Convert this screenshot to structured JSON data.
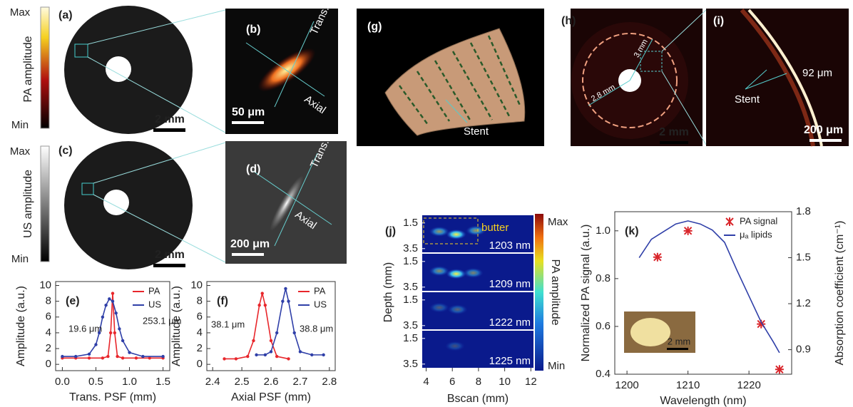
{
  "chart_data": [
    {
      "type": "line",
      "panel_label": "(e)",
      "xlabel": "Trans. PSF (mm)",
      "ylabel": "Amplitude (a.u.)",
      "xlim": [
        -0.1,
        1.6
      ],
      "xticks": [
        {
          "value": 0,
          "label": "0.0"
        },
        0.5,
        {
          "value": 1,
          "label": "1.0"
        },
        1.5
      ],
      "ylim": [
        -0.8,
        10.5
      ],
      "yticks": [
        0,
        2,
        4,
        6,
        8,
        10
      ],
      "legend": "upper right",
      "series": [
        {
          "name": "PA",
          "color": "#e8262b",
          "mode": "lines+markers",
          "x": [
            0,
            0.2,
            0.4,
            0.6,
            0.68,
            0.72,
            0.75,
            0.78,
            0.82,
            0.9,
            1.1,
            1.3,
            1.5
          ],
          "values": [
            0.8,
            0.8,
            0.8,
            0.8,
            1,
            4,
            9,
            4,
            1,
            0.8,
            0.8,
            0.8,
            0.8
          ]
        },
        {
          "name": "US",
          "color": "#2f3fa8",
          "mode": "lines+markers",
          "x": [
            0,
            0.2,
            0.4,
            0.5,
            0.55,
            0.6,
            0.65,
            0.7,
            0.75,
            0.8,
            0.85,
            0.9,
            1,
            1.2,
            1.5
          ],
          "values": [
            1,
            1,
            1.3,
            2.5,
            4,
            6,
            7.5,
            8.3,
            8,
            6.5,
            4.5,
            3,
            1.5,
            1,
            1
          ]
        }
      ],
      "annotations": [
        "19.6 μm",
        "253.1 μm"
      ]
    },
    {
      "type": "line",
      "panel_label": "(f)",
      "xlabel": "Axial PSF (mm)",
      "ylabel": "Amplitude (a.u.)",
      "xlim": [
        2.38,
        2.82
      ],
      "xticks": [
        2.4,
        2.5,
        2.6,
        2.7,
        2.8
      ],
      "ylim": [
        -0.8,
        10.5
      ],
      "yticks": [
        0,
        2,
        4,
        6,
        8,
        10
      ],
      "legend": "upper right",
      "series": [
        {
          "name": "PA",
          "color": "#e8262b",
          "mode": "lines+markers",
          "x": [
            2.44,
            2.48,
            2.52,
            2.54,
            2.56,
            2.57,
            2.58,
            2.6,
            2.62,
            2.66
          ],
          "values": [
            0.7,
            0.7,
            1,
            3,
            7.5,
            9,
            7.5,
            3,
            1,
            0.7
          ]
        },
        {
          "name": "US",
          "color": "#2f3fa8",
          "mode": "lines+markers",
          "x": [
            2.55,
            2.58,
            2.6,
            2.62,
            2.64,
            2.65,
            2.66,
            2.68,
            2.7,
            2.74,
            2.78
          ],
          "values": [
            1.2,
            1.2,
            1.6,
            4,
            8,
            9.6,
            8,
            4,
            1.6,
            1.2,
            1.2
          ]
        }
      ],
      "annotations": [
        "38.1 μm",
        "38.8 μm"
      ]
    },
    {
      "type": "line",
      "panel_label": "(k)",
      "xlabel": "Wavelength (nm)",
      "ylabel": "Normalized PA signal (a.u.)",
      "y2label": "Absorption coefficient (cm⁻¹)",
      "xlim": [
        1198,
        1227
      ],
      "xticks": [
        1200,
        1210,
        1220
      ],
      "ylim": [
        0.4,
        1.08
      ],
      "yticks": [
        0.4,
        0.6,
        0.8,
        {
          "value": 1,
          "label": "1.0"
        }
      ],
      "y2lim": [
        0.74,
        1.8
      ],
      "y2ticks": [
        0.9,
        1.2,
        1.5,
        1.8
      ],
      "legend": "upper right",
      "series": [
        {
          "name": "PA signal",
          "color": "#d9262b",
          "mode": "markers",
          "x": [
            1205,
            1210,
            1222,
            1225
          ],
          "values": [
            0.89,
            1,
            0.61,
            0.42
          ]
        },
        {
          "name": "μₐ lipids",
          "color": "#2f3fa8",
          "mode": "lines",
          "axis": "y2",
          "x": [
            1202,
            1204,
            1206,
            1208,
            1210,
            1212,
            1214,
            1216,
            1218,
            1220,
            1222,
            1224,
            1225
          ],
          "values": [
            1.5,
            1.62,
            1.67,
            1.72,
            1.74,
            1.72,
            1.68,
            1.6,
            1.42,
            1.25,
            1.08,
            0.95,
            0.88
          ]
        }
      ],
      "inset_scale": "2 mm"
    }
  ],
  "panels": {
    "a": {
      "label": "(a)",
      "max": "Max",
      "min": "Min",
      "colorbar_label": "PA amplitude",
      "scale": "2 mm"
    },
    "b": {
      "label": "(b)",
      "trans": "Trans.",
      "axial": "Axial",
      "scale": "50 μm"
    },
    "c": {
      "label": "(c)",
      "max": "Max",
      "min": "Min",
      "colorbar_label": "US amplitude",
      "scale": "2 mm"
    },
    "d": {
      "label": "(d)",
      "trans": "Trans.",
      "axial": "Axial",
      "scale": "200 μm"
    },
    "g": {
      "label": "(g)",
      "annotation": "Stent"
    },
    "h": {
      "label": "(h)",
      "outer": "3 mm",
      "inner": "2.8 mm",
      "scale": "2 mm"
    },
    "i": {
      "label": "(i)",
      "annotation": "Stent",
      "width": "92 μm",
      "scale": "200 μm"
    },
    "j": {
      "label": "(j)",
      "xlabel": "Bscan (mm)",
      "ylabel": "Depth (mm)",
      "xlim": [
        3.7,
        12.2
      ],
      "xticks": [
        4,
        6,
        8,
        10,
        12
      ],
      "ylim": [
        0.9,
        3.9
      ],
      "yticks": [
        1.5,
        3.5
      ],
      "rows": [
        "1203 nm",
        "1209 nm",
        "1222 nm",
        "1225 nm"
      ],
      "annotation": "butter",
      "colorbar_max": "Max",
      "colorbar_min": "Min",
      "colorbar_label": "PA amplitude"
    }
  }
}
